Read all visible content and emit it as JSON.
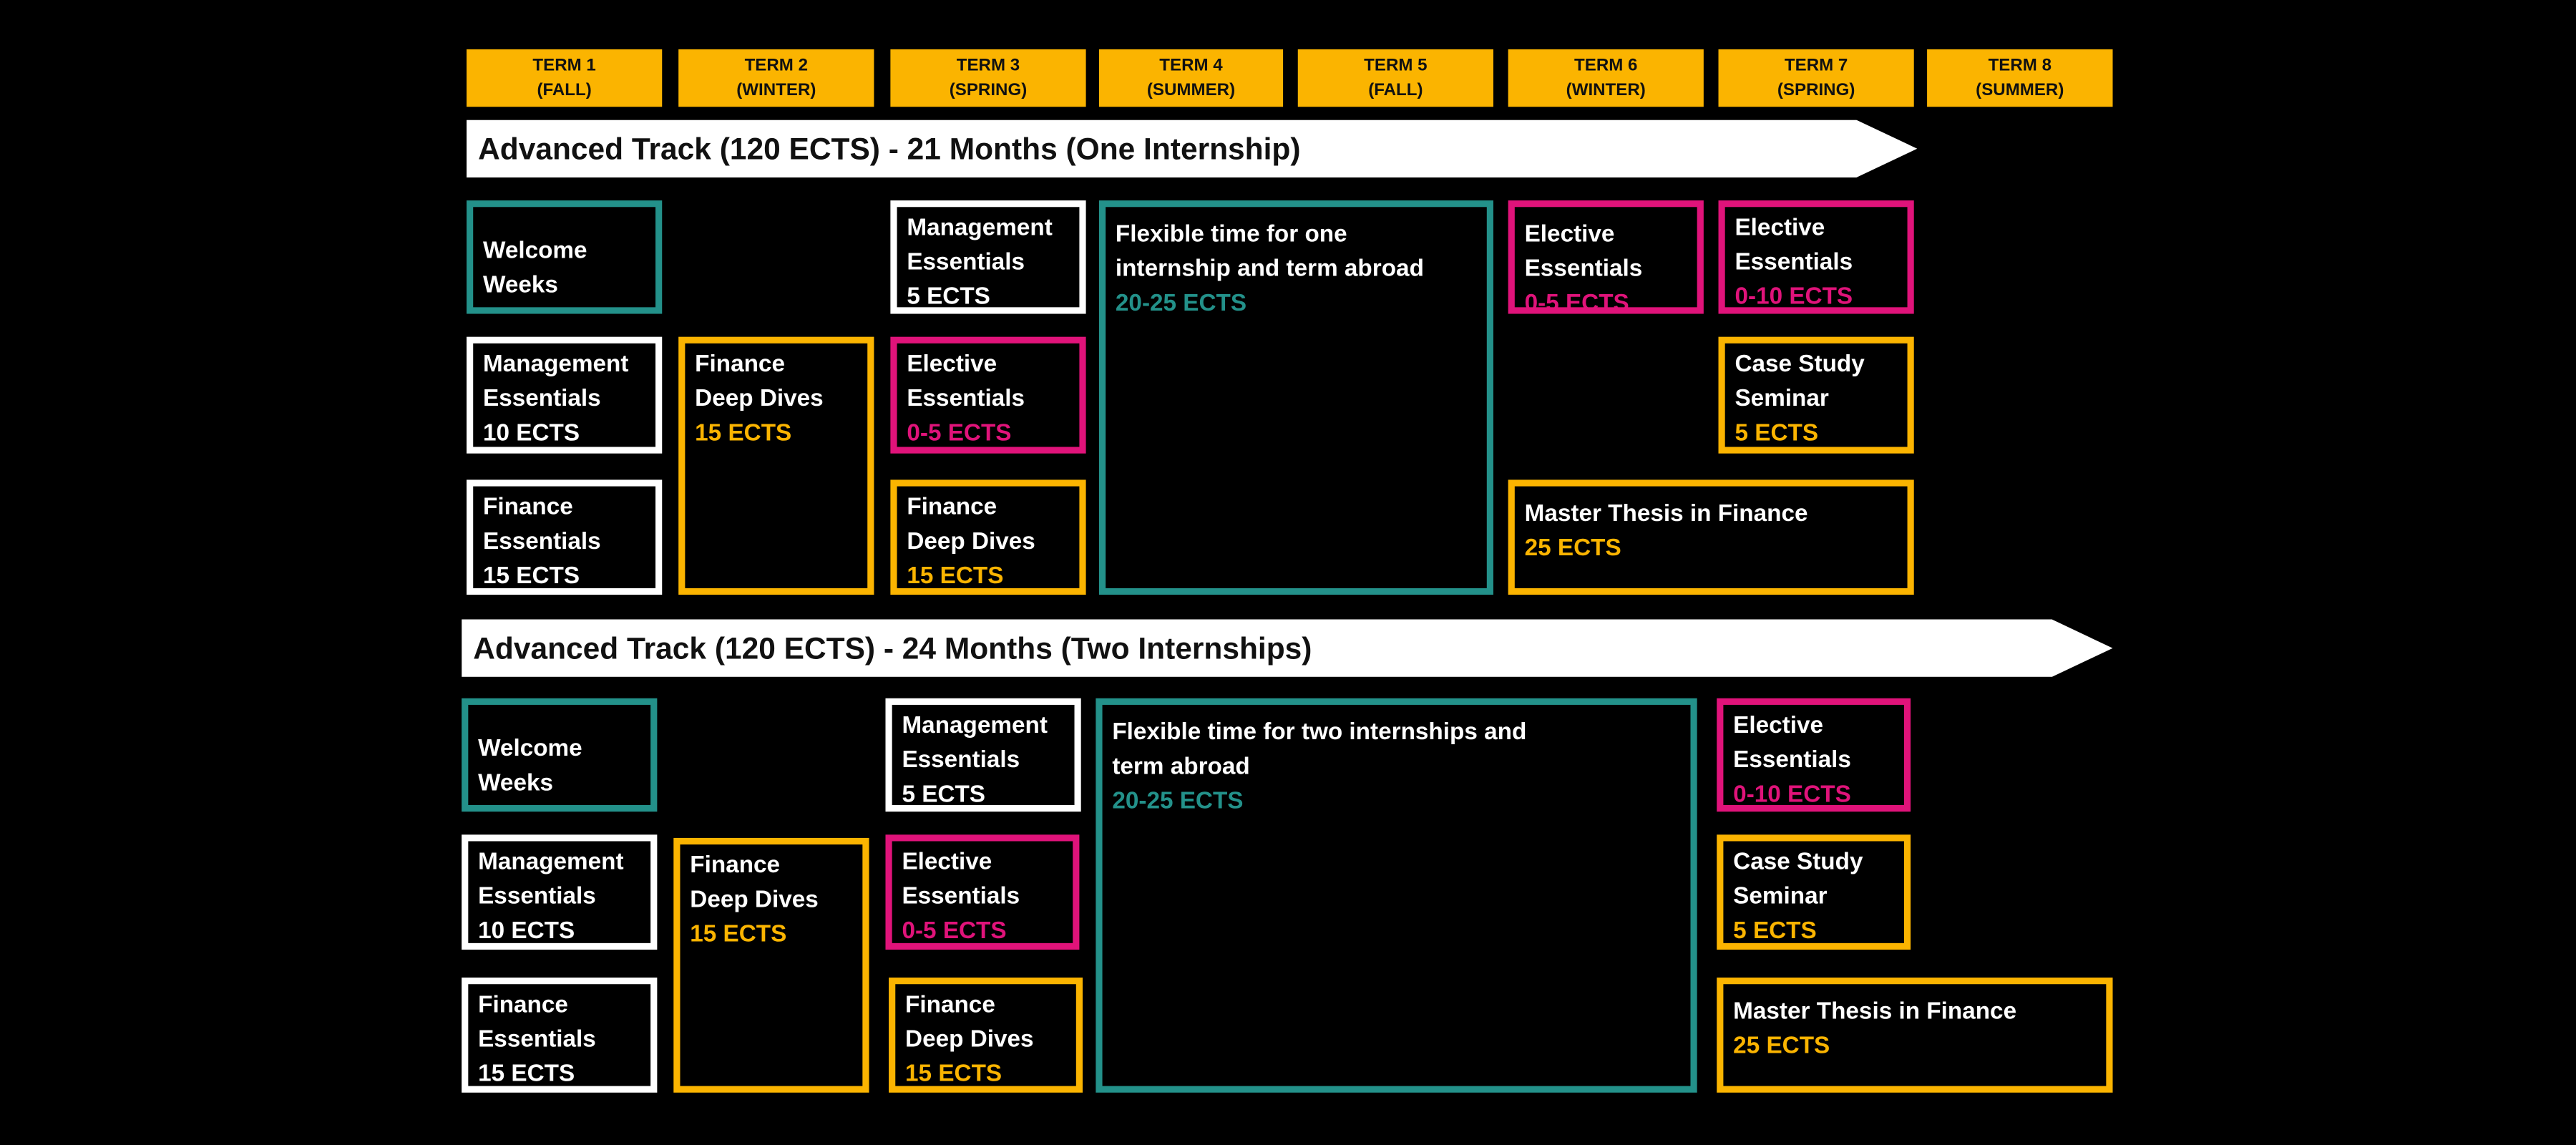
{
  "colors": {
    "term_header": "#fbb400",
    "teal": "#23918a",
    "pink": "#e0137a",
    "orange": "#fbb400",
    "white": "#ffffff",
    "background": "#000000"
  },
  "terms": [
    {
      "label": "TERM 1",
      "season": "(FALL)"
    },
    {
      "label": "TERM 2",
      "season": "(WINTER)"
    },
    {
      "label": "TERM 3",
      "season": "(SPRING)"
    },
    {
      "label": "TERM 4",
      "season": "(SUMMER)"
    },
    {
      "label": "TERM 5",
      "season": "(FALL)"
    },
    {
      "label": "TERM 6",
      "season": "(WINTER)"
    },
    {
      "label": "TERM 7",
      "season": "(SPRING)"
    },
    {
      "label": "TERM 8",
      "season": "(SUMMER)"
    }
  ],
  "tracks": [
    {
      "title": "Advanced Track (120 ECTS) - 21 Months  (One Internship)",
      "modules": [
        {
          "lines": [
            "Welcome",
            "Weeks"
          ],
          "ects": "",
          "color": "teal"
        },
        {
          "lines": [
            "Management",
            "Essentials"
          ],
          "ects": "10 ECTS",
          "color": "white"
        },
        {
          "lines": [
            "Finance",
            "Essentials"
          ],
          "ects": "15 ECTS",
          "color": "white"
        },
        {
          "lines": [
            "Finance",
            "Deep Dives"
          ],
          "ects": "15 ECTS",
          "color": "orange"
        },
        {
          "lines": [
            "Management",
            "Essentials"
          ],
          "ects": "5 ECTS",
          "color": "white"
        },
        {
          "lines": [
            "Elective",
            "Essentials"
          ],
          "ects": "0-5 ECTS",
          "color": "pink"
        },
        {
          "lines": [
            "Finance",
            "Deep Dives"
          ],
          "ects": "15 ECTS",
          "color": "orange"
        },
        {
          "lines": [
            "Flexible time for one",
            "internship and term abroad"
          ],
          "ects": "20-25 ECTS",
          "color": "teal"
        },
        {
          "lines": [
            "Elective",
            "Essentials"
          ],
          "ects": "0-5 ECTS",
          "color": "pink"
        },
        {
          "lines": [
            "Elective",
            "Essentials"
          ],
          "ects": "0-10 ECTS",
          "color": "pink"
        },
        {
          "lines": [
            "Case Study",
            "Seminar"
          ],
          "ects": "5 ECTS",
          "color": "orange"
        },
        {
          "lines": [
            "Master Thesis in Finance"
          ],
          "ects": "25 ECTS",
          "color": "orange"
        }
      ]
    },
    {
      "title": "Advanced Track (120 ECTS) - 24 Months  (Two Internships)",
      "modules": [
        {
          "lines": [
            "Welcome",
            "Weeks"
          ],
          "ects": "",
          "color": "teal"
        },
        {
          "lines": [
            "Management",
            "Essentials"
          ],
          "ects": "10 ECTS",
          "color": "white"
        },
        {
          "lines": [
            "Finance",
            "Essentials"
          ],
          "ects": "15 ECTS",
          "color": "white"
        },
        {
          "lines": [
            "Finance",
            "Deep Dives"
          ],
          "ects": "15 ECTS",
          "color": "orange"
        },
        {
          "lines": [
            "Management",
            "Essentials"
          ],
          "ects": "5 ECTS",
          "color": "white"
        },
        {
          "lines": [
            "Elective",
            "Essentials"
          ],
          "ects": "0-5 ECTS",
          "color": "pink"
        },
        {
          "lines": [
            "Finance",
            "Deep Dives"
          ],
          "ects": "15 ECTS",
          "color": "orange"
        },
        {
          "lines": [
            "Flexible time for two internships and",
            "term abroad"
          ],
          "ects": "20-25 ECTS",
          "color": "teal"
        },
        {
          "lines": [
            "Elective",
            "Essentials"
          ],
          "ects": "0-10 ECTS",
          "color": "pink"
        },
        {
          "lines": [
            "Case Study",
            "Seminar"
          ],
          "ects": "5 ECTS",
          "color": "orange"
        },
        {
          "lines": [
            "Master Thesis in Finance"
          ],
          "ects": "25 ECTS",
          "color": "orange"
        }
      ]
    }
  ]
}
